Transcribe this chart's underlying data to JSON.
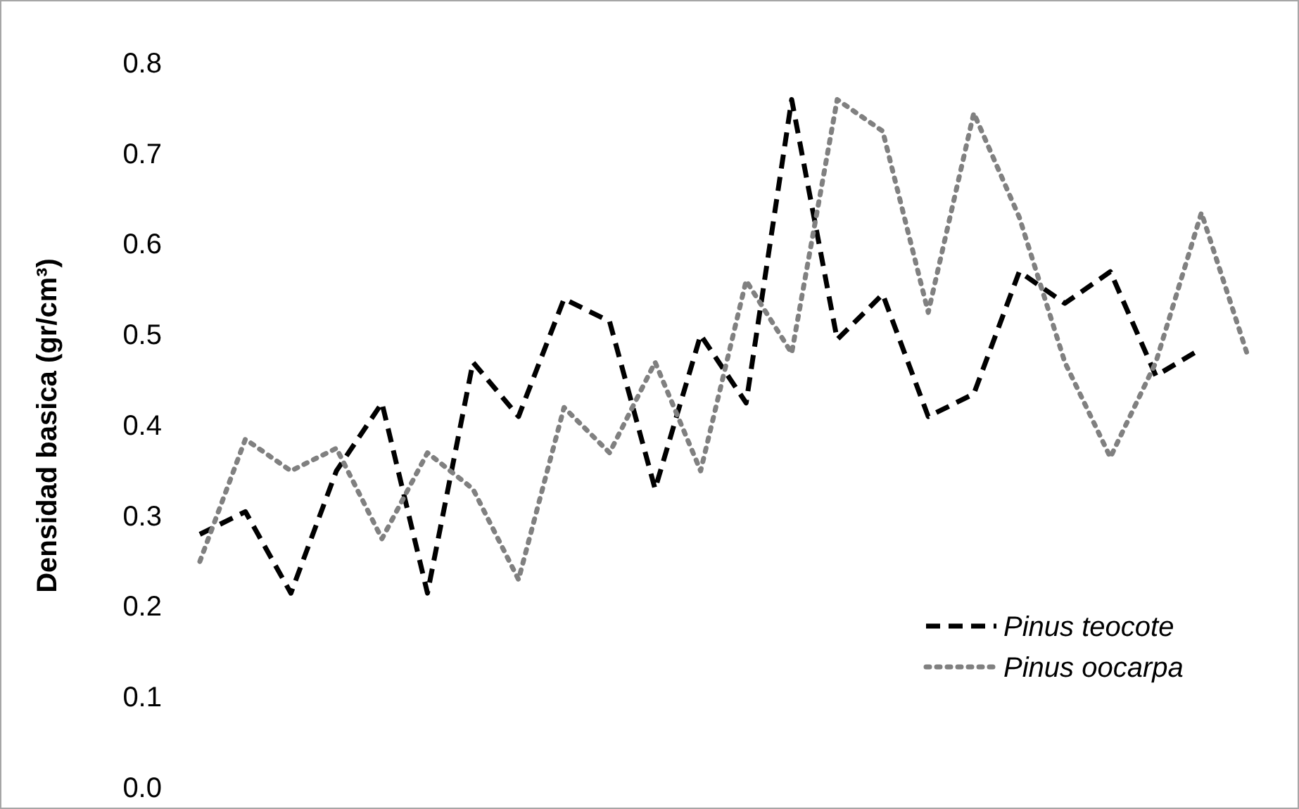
{
  "chart_data": {
    "type": "line",
    "ylabel": "Densidad basica (gr/cm³)",
    "ylim": [
      0,
      0.8
    ],
    "yticks": [
      {
        "value": 0,
        "label": "0.0"
      },
      0.1,
      0.2,
      0.3,
      0.4,
      0.5,
      0.6,
      0.7,
      0.8
    ],
    "categories": [
      null,
      null,
      null,
      null,
      null,
      null,
      null,
      null,
      null,
      null,
      null,
      null,
      null,
      null,
      null,
      null,
      null,
      null,
      null,
      null,
      null,
      null,
      null,
      null
    ],
    "legend": "bottom right",
    "grid": false,
    "series": [
      {
        "name": "Pinus teocote",
        "color": "#000000",
        "line_style": "dashed",
        "values": [
          0.28,
          0.305,
          0.215,
          0.35,
          0.425,
          0.215,
          0.47,
          0.41,
          0.54,
          0.515,
          0.33,
          0.5,
          0.425,
          0.76,
          0.495,
          0.545,
          0.41,
          0.435,
          0.57,
          0.535,
          0.57,
          0.455,
          0.485,
          null
        ]
      },
      {
        "name": "Pinus oocarpa",
        "color": "#808080",
        "line_style": "dotted",
        "values": [
          0.25,
          0.385,
          0.35,
          0.375,
          0.275,
          0.37,
          0.33,
          0.23,
          0.42,
          0.37,
          0.47,
          0.35,
          0.56,
          0.48,
          0.76,
          0.725,
          0.525,
          0.745,
          0.63,
          0.47,
          0.365,
          0.47,
          0.635,
          0.48
        ]
      }
    ]
  }
}
